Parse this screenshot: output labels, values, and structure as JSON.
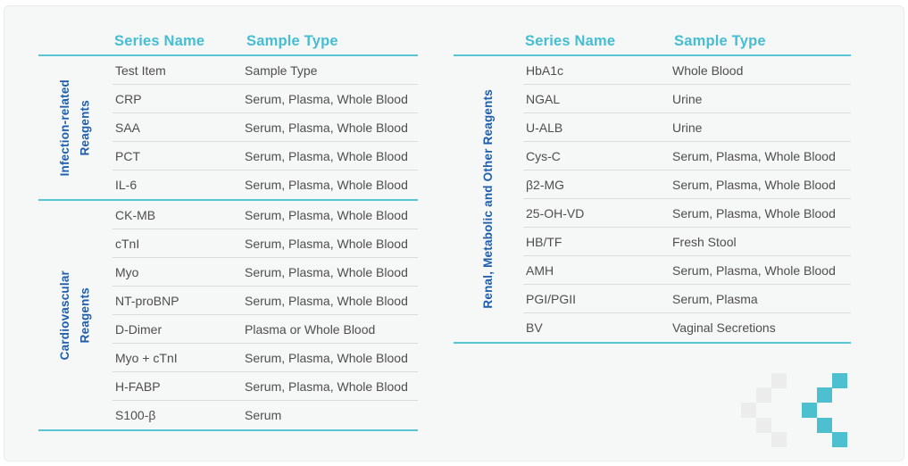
{
  "colors": {
    "accent_teal": "#45bdd3",
    "line_teal": "#57c5d8",
    "category_blue": "#1e5ead",
    "body_text": "#4e4e4e",
    "row_line": "#dbdbdb",
    "slide_bg": "#f6f7f7",
    "decor_teal": "#4cc0cf",
    "decor_gray": "#ececec"
  },
  "tables": [
    {
      "id": "left",
      "headers": {
        "series": "Series Name",
        "sample": "Sample Type"
      },
      "sections": [
        {
          "category": "Infection-related\nReagents",
          "rows": [
            {
              "series": "Test Item",
              "sample": "Sample Type"
            },
            {
              "series": "CRP",
              "sample": "Serum, Plasma, Whole Blood"
            },
            {
              "series": "SAA",
              "sample": "Serum, Plasma, Whole Blood"
            },
            {
              "series": "PCT",
              "sample": "Serum, Plasma, Whole Blood"
            },
            {
              "series": "IL-6",
              "sample": "Serum, Plasma, Whole Blood"
            }
          ]
        },
        {
          "category": "Cardiovascular\nReagents",
          "rows": [
            {
              "series": "CK-MB",
              "sample": "Serum, Plasma, Whole Blood"
            },
            {
              "series": "cTnI",
              "sample": "Serum, Plasma, Whole Blood"
            },
            {
              "series": "Myo",
              "sample": "Serum, Plasma, Whole Blood"
            },
            {
              "series": "NT-proBNP",
              "sample": "Serum, Plasma, Whole Blood"
            },
            {
              "series": "D-Dimer",
              "sample": "Plasma or Whole Blood"
            },
            {
              "series": "Myo + cTnI",
              "sample": "Serum, Plasma, Whole Blood"
            },
            {
              "series": "H-FABP",
              "sample": "Serum, Plasma, Whole Blood"
            },
            {
              "series": "S100-β",
              "sample": "Serum"
            }
          ]
        }
      ]
    },
    {
      "id": "right",
      "headers": {
        "series": "Series Name",
        "sample": "Sample Type"
      },
      "sections": [
        {
          "category": "Renal, Metabolic and Other Reagents",
          "rows": [
            {
              "series": "HbA1c",
              "sample": "Whole Blood"
            },
            {
              "series": "NGAL",
              "sample": "Urine"
            },
            {
              "series": "U-ALB",
              "sample": "Urine"
            },
            {
              "series": "Cys-C",
              "sample": "Serum, Plasma, Whole Blood"
            },
            {
              "series": "β2-MG",
              "sample": "Serum, Plasma, Whole Blood"
            },
            {
              "series": "25-OH-VD",
              "sample": "Serum, Plasma, Whole Blood"
            },
            {
              "series": "HB/TF",
              "sample": "Fresh Stool"
            },
            {
              "series": "AMH",
              "sample": "Serum, Plasma, Whole Blood"
            },
            {
              "series": "PGI/PGII",
              "sample": "Serum, Plasma"
            },
            {
              "series": "BV",
              "sample": "Vaginal Secretions"
            }
          ]
        }
      ]
    }
  ],
  "decor": {
    "icon": "pixel-chevron-left-icon"
  }
}
